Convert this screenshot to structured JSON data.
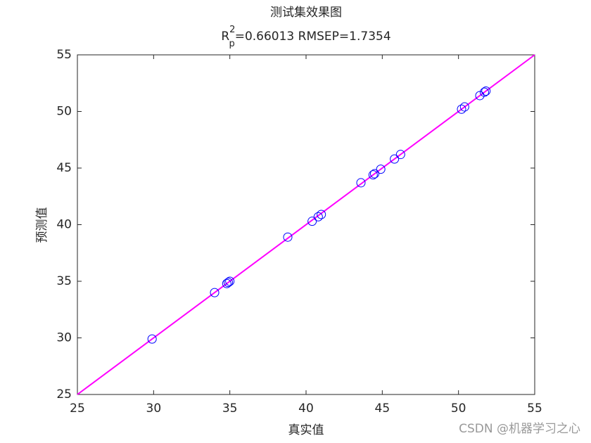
{
  "chart_data": {
    "type": "scatter",
    "title": "测试集效果图",
    "subtitle_parts": [
      "R",
      "2",
      "p",
      "=0.66013  RMSEP=1.7354"
    ],
    "x_label": "真实值",
    "y_label": "预测值",
    "x": [
      29.9,
      34.0,
      34.8,
      34.9,
      35.0,
      38.8,
      40.4,
      40.8,
      41.0,
      43.6,
      44.4,
      44.5,
      44.9,
      45.8,
      46.2,
      50.2,
      50.4,
      51.4,
      51.7,
      51.8
    ],
    "values": [
      29.9,
      34.0,
      34.8,
      34.9,
      35.0,
      38.9,
      40.3,
      40.7,
      40.9,
      43.7,
      44.4,
      44.5,
      44.9,
      45.8,
      46.2,
      50.2,
      50.4,
      51.4,
      51.7,
      51.8
    ],
    "color": "#0000ff",
    "line": {
      "x": [
        25,
        55
      ],
      "y": [
        25,
        55
      ],
      "color": "#ff00ff"
    },
    "xlim": [
      25,
      55
    ],
    "ylim": [
      25,
      55
    ],
    "xticks": [
      25,
      30,
      35,
      40,
      45,
      50,
      55
    ],
    "yticks": [
      25,
      30,
      35,
      40,
      45,
      50,
      55
    ],
    "watermark": "CSDN @机器学习之心"
  }
}
